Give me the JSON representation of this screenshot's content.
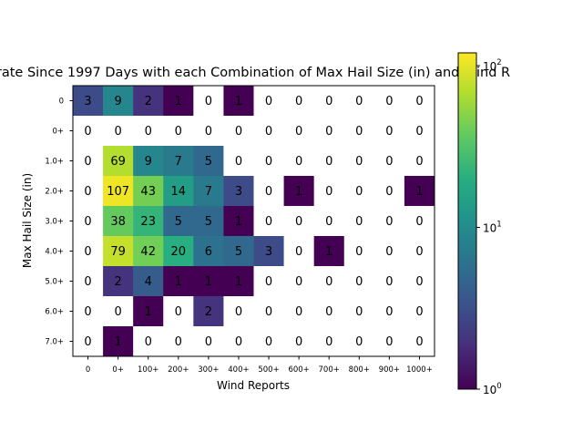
{
  "chart_data": {
    "type": "heatmap",
    "title": "rate Since 1997 Days with each Combination of Max Hail Size (in) and Wind R",
    "xlabel": "Wind Reports",
    "ylabel": "Max Hail Size (in)",
    "x_categories": [
      "0",
      "0+",
      "100+",
      "200+",
      "300+",
      "400+",
      "500+",
      "600+",
      "700+",
      "800+",
      "900+",
      "1000+"
    ],
    "y_categories": [
      "0",
      "0+",
      "1.0+",
      "2.0+",
      "3.0+",
      "4.0+",
      "5.0+",
      "6.0+",
      "7.0+"
    ],
    "values": [
      [
        3,
        9,
        2,
        1,
        0,
        1,
        0,
        0,
        0,
        0,
        0,
        0
      ],
      [
        0,
        0,
        0,
        0,
        0,
        0,
        0,
        0,
        0,
        0,
        0,
        0
      ],
      [
        0,
        69,
        9,
        7,
        5,
        0,
        0,
        0,
        0,
        0,
        0,
        0
      ],
      [
        0,
        107,
        43,
        14,
        7,
        3,
        0,
        1,
        0,
        0,
        0,
        1
      ],
      [
        0,
        38,
        23,
        5,
        5,
        1,
        0,
        0,
        0,
        0,
        0,
        0
      ],
      [
        0,
        79,
        42,
        20,
        6,
        5,
        3,
        0,
        1,
        0,
        0,
        0
      ],
      [
        0,
        2,
        4,
        1,
        1,
        1,
        0,
        0,
        0,
        0,
        0,
        0
      ],
      [
        0,
        0,
        1,
        0,
        2,
        0,
        0,
        0,
        0,
        0,
        0,
        0
      ],
      [
        0,
        1,
        0,
        0,
        0,
        0,
        0,
        0,
        0,
        0,
        0,
        0
      ]
    ],
    "color_scale": "log",
    "colormap": "viridis",
    "colorbar_range": [
      1,
      120
    ],
    "colorbar_ticks": [
      {
        "value": 1,
        "base": "10",
        "exp": "0"
      },
      {
        "value": 10,
        "base": "10",
        "exp": "1"
      },
      {
        "value": 100,
        "base": "10",
        "exp": "2"
      }
    ],
    "zero_color": "#ffffff",
    "grid": false
  }
}
